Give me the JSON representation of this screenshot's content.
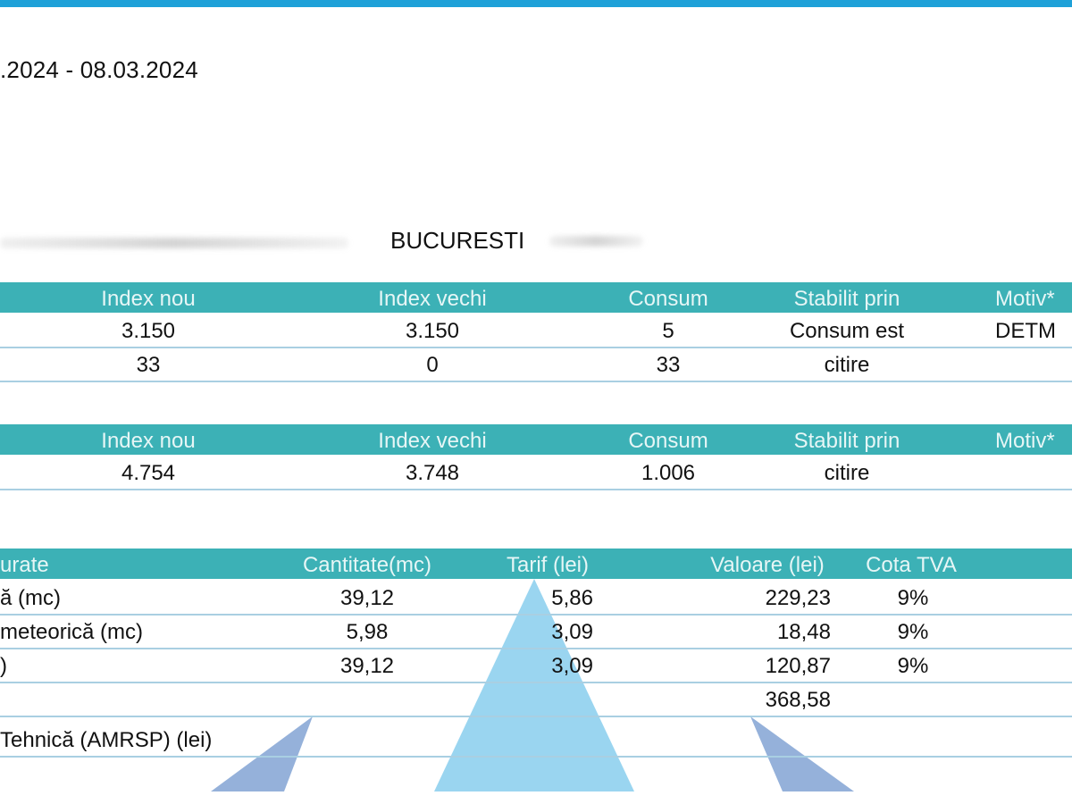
{
  "document": {
    "period": ".2024 - 08.03.2024",
    "address_city": "BUCURESTI"
  },
  "meter_table_1": {
    "headers": [
      "Index nou",
      "Index vechi",
      "Consum",
      "Stabilit prin",
      "Motiv*"
    ],
    "rows": [
      [
        "3.150",
        "3.150",
        "5",
        "Consum est",
        "DETM"
      ],
      [
        "33",
        "0",
        "33",
        "citire",
        ""
      ]
    ]
  },
  "meter_table_2": {
    "headers": [
      "Index nou",
      "Index vechi",
      "Consum",
      "Stabilit prin",
      "Motiv*"
    ],
    "rows": [
      [
        "4.754",
        "3.748",
        "1.006",
        "citire",
        ""
      ]
    ]
  },
  "billing_table": {
    "headers": [
      "urate",
      "Cantitate(mc)",
      "Tarif (lei)",
      "Valoare (lei)",
      "Cota TVA"
    ],
    "rows": [
      [
        "ă (mc)",
        "39,12",
        "5,86",
        "229,23",
        "9%"
      ],
      [
        "meteorică (mc)",
        "5,98",
        "3,09",
        "18,48",
        "9%"
      ],
      [
        ")",
        "39,12",
        "3,09",
        "120,87",
        "9%"
      ],
      [
        "",
        "",
        "",
        "368,58",
        ""
      ],
      [
        "Tehnică (AMRSP) (lei)",
        "",
        "",
        "",
        ""
      ]
    ]
  },
  "colors": {
    "top_bar": "#1fa1d8",
    "header_bg": "#3cb1b6",
    "row_divider": "#a9cfe2"
  }
}
